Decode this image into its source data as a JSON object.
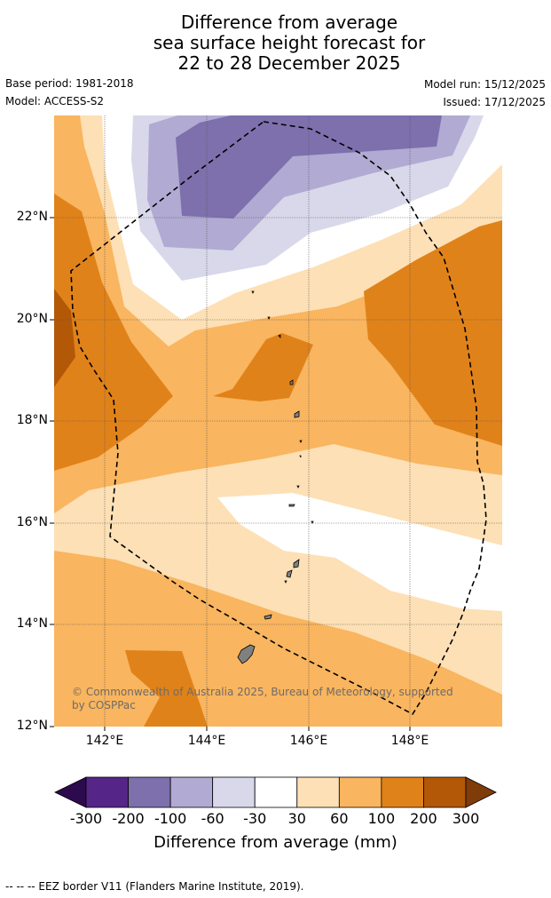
{
  "header": {
    "title_line1": "Difference from average",
    "title_line2": "sea surface height forecast for",
    "title_line3": "22 to 28 December 2025",
    "base_period": "Base period: 1981-2018",
    "model": "Model: ACCESS-S2",
    "model_run": "Model run: 15/12/2025",
    "issued": "Issued: 17/12/2025"
  },
  "map": {
    "latitude_ticks": [
      "22°N",
      "20°N",
      "18°N",
      "16°N",
      "14°N",
      "12°N"
    ],
    "longitude_ticks": [
      "142°E",
      "144°E",
      "146°E",
      "148°E"
    ],
    "credit_line1": "© Commonwealth of Australia 2025, Bureau of Meteorology, supported",
    "credit_line2": "by COSPPac"
  },
  "colorbar": {
    "ticks": [
      "-300",
      "-200",
      "-100",
      "-60",
      "-30",
      "30",
      "60",
      "100",
      "200",
      "300"
    ],
    "colors": [
      "#2d0a4d",
      "#552587",
      "#7d70ad",
      "#b1aad2",
      "#d8d8ea",
      "#ffffff",
      "#fde0b5",
      "#f9b55f",
      "#e0821a",
      "#b35807",
      "#7f3b08"
    ],
    "label": "Difference from average (mm)"
  },
  "footer": {
    "eez_legend": "--  --  -- EEZ border V11 (Flanders Marine Institute, 2019)."
  }
}
